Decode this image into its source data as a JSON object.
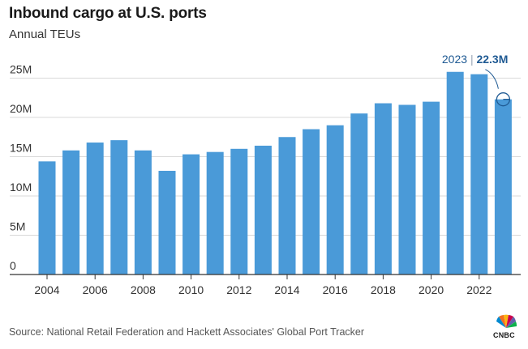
{
  "header": {
    "title": "Inbound cargo at U.S. ports",
    "subtitle": "Annual TEUs"
  },
  "footer": {
    "source": "Source: National Retail Federation and Hackett Associates' Global Port Tracker",
    "logo_text": "CNBC"
  },
  "annotation": {
    "year_label": "2023",
    "separator": "|",
    "value_label": "22.3M"
  },
  "colors": {
    "bar": "#4a9ad8",
    "grid": "#d9d9d9",
    "axis": "#333333",
    "annotation": "#1f5a93"
  },
  "chart_data": {
    "type": "bar",
    "categories": [
      "2004",
      "2005",
      "2006",
      "2007",
      "2008",
      "2009",
      "2010",
      "2011",
      "2012",
      "2013",
      "2014",
      "2015",
      "2016",
      "2017",
      "2018",
      "2019",
      "2020",
      "2021",
      "2022",
      "2023"
    ],
    "values": [
      14.4,
      15.8,
      16.8,
      17.1,
      15.8,
      13.2,
      15.3,
      15.6,
      16.0,
      16.4,
      17.5,
      18.5,
      19.0,
      20.5,
      21.8,
      21.6,
      22.0,
      25.8,
      25.5,
      22.3
    ],
    "value_unit": "M",
    "title": "Inbound cargo at U.S. ports",
    "subtitle": "Annual TEUs",
    "xlabel": "",
    "ylabel": "",
    "ylim": [
      0,
      27
    ],
    "yticks": [
      0,
      5,
      10,
      15,
      20,
      25
    ],
    "ytick_labels": [
      "0",
      "5M",
      "10M",
      "15M",
      "20M",
      "25M"
    ],
    "xtick_labels": [
      "2004",
      "2006",
      "2008",
      "2010",
      "2012",
      "2014",
      "2016",
      "2018",
      "2020",
      "2022"
    ],
    "grid": true,
    "highlight_category": "2023"
  }
}
